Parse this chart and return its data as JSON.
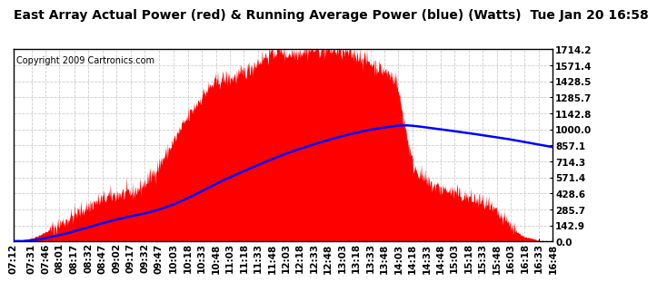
{
  "title": "East Array Actual Power (red) & Running Average Power (blue) (Watts)  Tue Jan 20 16:58",
  "copyright": "Copyright 2009 Cartronics.com",
  "ymin": 0.0,
  "ymax": 1714.2,
  "yticks": [
    0.0,
    142.9,
    285.7,
    428.6,
    571.4,
    714.3,
    857.1,
    1000.0,
    1142.8,
    1285.7,
    1428.5,
    1571.4,
    1714.2
  ],
  "ytick_labels": [
    "0.0",
    "142.9",
    "285.7",
    "428.6",
    "571.4",
    "714.3",
    "857.1",
    "1000.0",
    "1142.8",
    "1285.7",
    "1428.5",
    "1571.4",
    "1714.2"
  ],
  "xtick_labels": [
    "07:12",
    "07:31",
    "07:46",
    "08:01",
    "08:17",
    "08:32",
    "08:47",
    "09:02",
    "09:17",
    "09:32",
    "09:47",
    "10:03",
    "10:18",
    "10:33",
    "10:48",
    "11:03",
    "11:18",
    "11:33",
    "11:48",
    "12:03",
    "12:18",
    "12:33",
    "12:48",
    "13:03",
    "13:18",
    "13:33",
    "13:48",
    "14:03",
    "14:18",
    "14:33",
    "14:48",
    "15:03",
    "15:18",
    "15:33",
    "15:48",
    "16:03",
    "16:18",
    "16:33",
    "16:48"
  ],
  "bg_color": "#ffffff",
  "grid_color": "#cccccc",
  "actual_color": "#ff0000",
  "average_color": "#0000ff",
  "title_fontsize": 10,
  "tick_fontsize": 7.5,
  "copyright_fontsize": 7
}
